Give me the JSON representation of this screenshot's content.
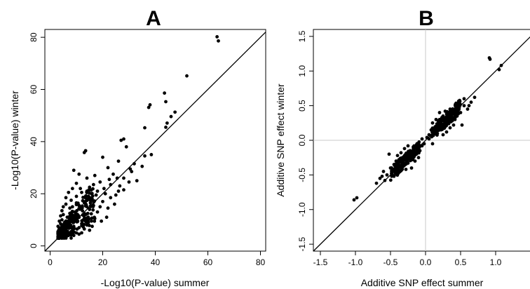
{
  "chart_data": [
    {
      "type": "scatter",
      "title": "A",
      "xlabel": "-Log10(P-value) summer",
      "ylabel": "-Log10(P-value) winter",
      "xlim": [
        -2,
        82
      ],
      "ylim": [
        -2,
        83
      ],
      "xticks": [
        0,
        20,
        40,
        60,
        80
      ],
      "yticks": [
        0,
        20,
        40,
        60,
        80
      ],
      "reference_line": {
        "type": "identity",
        "slope": 1,
        "intercept": 0
      },
      "grid": false,
      "series": [
        {
          "points_note_free": true,
          "points": [
            [
              63.5,
              80.2
            ],
            [
              64.0,
              78.6
            ],
            [
              52.0,
              65.2
            ],
            [
              43.5,
              58.6
            ],
            [
              44.0,
              55.3
            ],
            [
              38.0,
              54.1
            ],
            [
              37.5,
              53.1
            ],
            [
              47.5,
              51.3
            ],
            [
              46.0,
              49.6
            ],
            [
              44.5,
              47.1
            ],
            [
              44.0,
              45.5
            ],
            [
              36.0,
              45.3
            ],
            [
              28.0,
              41.0
            ],
            [
              27.0,
              40.5
            ],
            [
              29.0,
              38.0
            ],
            [
              38.5,
              35.0
            ],
            [
              36.0,
              34.5
            ],
            [
              13.5,
              36.5
            ],
            [
              13.0,
              35.8
            ],
            [
              20.0,
              34.0
            ],
            [
              26.0,
              32.5
            ],
            [
              32.0,
              31.5
            ],
            [
              30.5,
              29.5
            ],
            [
              9.0,
              29.0
            ],
            [
              11.0,
              27.5
            ],
            [
              14.0,
              26.0
            ],
            [
              17.0,
              27.0
            ],
            [
              24.0,
              27.5
            ],
            [
              28.0,
              26.0
            ],
            [
              31.0,
              28.5
            ],
            [
              22.0,
              30.0
            ],
            [
              35.0,
              30.5
            ],
            [
              19.0,
              24.5
            ],
            [
              23.0,
              23.5
            ],
            [
              26.5,
              23.0
            ],
            [
              15.0,
              22.5
            ],
            [
              18.0,
              21.0
            ],
            [
              21.0,
              20.0
            ],
            [
              25.0,
              19.5
            ],
            [
              28.0,
              21.5
            ],
            [
              12.0,
              20.5
            ],
            [
              10.0,
              19.0
            ],
            [
              16.0,
              18.0
            ],
            [
              20.0,
              17.0
            ],
            [
              13.0,
              16.5
            ],
            [
              8.0,
              17.5
            ],
            [
              11.0,
              15.5
            ],
            [
              15.0,
              14.0
            ],
            [
              18.0,
              13.0
            ],
            [
              22.0,
              14.5
            ],
            [
              24.5,
              16.0
            ],
            [
              30.0,
              24.5
            ],
            [
              33.0,
              25.0
            ],
            [
              6.0,
              16.0
            ],
            [
              7.5,
              14.5
            ],
            [
              9.5,
              13.0
            ],
            [
              12.5,
              12.0
            ],
            [
              14.5,
              11.0
            ],
            [
              17.0,
              10.5
            ],
            [
              19.5,
              9.5
            ],
            [
              21.5,
              11.0
            ],
            [
              5.0,
              12.0
            ],
            [
              6.5,
              11.0
            ],
            [
              8.5,
              10.5
            ],
            [
              10.5,
              9.5
            ],
            [
              12.0,
              8.5
            ],
            [
              14.0,
              8.0
            ],
            [
              16.0,
              7.5
            ],
            [
              4.5,
              10.0
            ],
            [
              5.5,
              9.0
            ],
            [
              7.0,
              8.0
            ],
            [
              9.0,
              7.5
            ],
            [
              11.0,
              7.0
            ],
            [
              13.0,
              6.5
            ],
            [
              15.0,
              6.0
            ],
            [
              4.0,
              8.5
            ],
            [
              5.0,
              7.0
            ],
            [
              6.0,
              6.0
            ],
            [
              8.0,
              5.5
            ],
            [
              10.0,
              5.0
            ],
            [
              12.0,
              5.0
            ],
            [
              3.5,
              6.5
            ],
            [
              4.5,
              5.5
            ],
            [
              5.5,
              4.5
            ],
            [
              7.0,
              4.0
            ],
            [
              9.0,
              4.0
            ],
            [
              11.0,
              4.5
            ],
            [
              3.5,
              4.5
            ],
            [
              4.5,
              3.5
            ],
            [
              6.0,
              3.5
            ],
            [
              8.0,
              3.0
            ],
            [
              3.5,
              3.0
            ],
            [
              5.0,
              3.0
            ],
            [
              3.0,
              5.5
            ],
            [
              3.0,
              7.5
            ],
            [
              3.5,
              9.5
            ],
            [
              4.0,
              11.5
            ],
            [
              4.5,
              13.5
            ],
            [
              5.0,
              15.0
            ],
            [
              6.0,
              18.5
            ],
            [
              7.0,
              20.5
            ],
            [
              8.5,
              22.0
            ],
            [
              10.0,
              24.0
            ],
            [
              11.5,
              22.0
            ],
            [
              13.5,
              19.0
            ],
            [
              7.5,
              12.5
            ],
            [
              8.5,
              15.0
            ],
            [
              10.0,
              16.5
            ],
            [
              9.5,
              11.5
            ],
            [
              6.5,
              9.5
            ],
            [
              16.5,
              15.5
            ],
            [
              19.0,
              15.0
            ],
            [
              23.0,
              18.5
            ],
            [
              26.0,
              21.0
            ],
            [
              20.5,
              22.0
            ],
            [
              17.5,
              19.5
            ],
            [
              22.5,
              25.5
            ],
            [
              25.5,
              26.0
            ],
            [
              16.5,
              23.5
            ],
            [
              14.0,
              21.0
            ]
          ]
        }
      ]
    },
    {
      "type": "scatter",
      "title": "B",
      "xlabel": "Additive SNP effect summer",
      "ylabel": "Additive SNP effect winter",
      "xlim": [
        -1.6,
        1.6
      ],
      "ylim": [
        -1.6,
        1.6
      ],
      "xticks": [
        -1.5,
        -1.0,
        -0.5,
        0.0,
        0.5,
        1.0,
        1.5
      ],
      "yticks": [
        -1.5,
        -1.0,
        -0.5,
        0.0,
        0.5,
        1.0,
        1.5
      ],
      "xtick_labels": [
        "-1.5",
        "-1.0",
        "-0.5",
        "0.0",
        "0.5",
        "1.0",
        "1.5"
      ],
      "ytick_labels": [
        "-1.5",
        "-1.0",
        "-0.5",
        "0.0",
        "0.5",
        "1.0",
        "1.5"
      ],
      "reference_line": {
        "type": "identity",
        "slope": 1,
        "intercept": 0
      },
      "zero_lines": true,
      "grid": false,
      "series": [
        {
          "points": [
            [
              0.91,
              1.19
            ],
            [
              0.92,
              1.17
            ],
            [
              1.08,
              1.08
            ],
            [
              1.05,
              1.02
            ],
            [
              -0.98,
              -0.83
            ],
            [
              -1.02,
              -0.86
            ],
            [
              0.7,
              0.62
            ],
            [
              0.65,
              0.55
            ],
            [
              0.55,
              0.5
            ],
            [
              0.48,
              0.47
            ],
            [
              0.45,
              0.52
            ],
            [
              0.4,
              0.42
            ],
            [
              0.35,
              0.45
            ],
            [
              0.3,
              0.38
            ],
            [
              0.42,
              0.3
            ],
            [
              0.25,
              0.35
            ],
            [
              0.2,
              0.3
            ],
            [
              0.33,
              0.25
            ],
            [
              0.28,
              0.2
            ],
            [
              0.22,
              0.22
            ],
            [
              0.18,
              0.15
            ],
            [
              0.38,
              0.28
            ],
            [
              0.15,
              0.2
            ],
            [
              0.12,
              0.1
            ],
            [
              0.08,
              0.15
            ],
            [
              0.3,
              0.12
            ],
            [
              0.25,
              0.08
            ],
            [
              0.45,
              0.35
            ],
            [
              0.5,
              0.4
            ],
            [
              0.4,
              0.22
            ],
            [
              0.2,
              0.4
            ],
            [
              0.15,
              0.3
            ],
            [
              0.1,
              0.25
            ],
            [
              0.05,
              0.08
            ],
            [
              0.35,
              0.18
            ],
            [
              0.27,
              0.3
            ],
            [
              0.22,
              0.15
            ],
            [
              0.18,
              0.28
            ],
            [
              0.32,
              0.33
            ],
            [
              0.43,
              0.45
            ],
            [
              0.37,
              0.38
            ],
            [
              0.13,
              0.18
            ],
            [
              -0.7,
              -0.62
            ],
            [
              -0.65,
              -0.55
            ],
            [
              -0.55,
              -0.5
            ],
            [
              -0.48,
              -0.48
            ],
            [
              -0.45,
              -0.52
            ],
            [
              -0.4,
              -0.4
            ],
            [
              -0.35,
              -0.44
            ],
            [
              -0.3,
              -0.36
            ],
            [
              -0.42,
              -0.3
            ],
            [
              -0.25,
              -0.33
            ],
            [
              -0.2,
              -0.28
            ],
            [
              -0.33,
              -0.25
            ],
            [
              -0.28,
              -0.2
            ],
            [
              -0.22,
              -0.22
            ],
            [
              -0.18,
              -0.15
            ],
            [
              -0.38,
              -0.28
            ],
            [
              -0.15,
              -0.2
            ],
            [
              -0.12,
              -0.1
            ],
            [
              -0.08,
              -0.15
            ],
            [
              -0.3,
              -0.12
            ],
            [
              -0.25,
              -0.08
            ],
            [
              -0.45,
              -0.35
            ],
            [
              -0.5,
              -0.4
            ],
            [
              -0.4,
              -0.22
            ],
            [
              -0.2,
              -0.4
            ],
            [
              -0.15,
              -0.3
            ],
            [
              -0.1,
              -0.25
            ],
            [
              -0.05,
              -0.08
            ],
            [
              -0.35,
              -0.18
            ],
            [
              -0.27,
              -0.3
            ],
            [
              -0.22,
              -0.15
            ],
            [
              -0.18,
              -0.28
            ],
            [
              -0.32,
              -0.33
            ],
            [
              -0.43,
              -0.45
            ],
            [
              -0.37,
              -0.38
            ],
            [
              -0.13,
              -0.18
            ],
            [
              -0.52,
              -0.2
            ],
            [
              -0.6,
              -0.45
            ],
            [
              -0.1,
              -0.05
            ],
            [
              -0.02,
              -0.05
            ],
            [
              0.02,
              0.04
            ],
            [
              0.05,
              0.02
            ],
            [
              -0.05,
              0.02
            ],
            [
              0.6,
              0.45
            ],
            [
              0.52,
              0.22
            ],
            [
              0.1,
              -0.05
            ],
            [
              0.55,
              0.6
            ],
            [
              0.62,
              0.5
            ],
            [
              -0.62,
              -0.52
            ],
            [
              -0.58,
              -0.58
            ],
            [
              0.28,
              0.42
            ],
            [
              -0.28,
              -0.42
            ]
          ]
        }
      ]
    }
  ]
}
